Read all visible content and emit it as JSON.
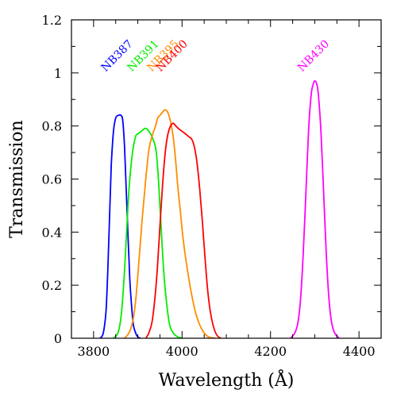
{
  "chart_data": {
    "type": "line",
    "title": "",
    "xlabel": "Wavelength (Å)",
    "ylabel": "Transmission",
    "xlim": [
      3750,
      4450
    ],
    "ylim": [
      0,
      1.2
    ],
    "x_ticks": [
      3800,
      4000,
      4200,
      4400
    ],
    "x_tick_labels": [
      "3800",
      "4000",
      "4200",
      "4400"
    ],
    "y_ticks": [
      0,
      0.2,
      0.4,
      0.6,
      0.8,
      1,
      1.2
    ],
    "y_tick_labels": [
      "0",
      "0.2",
      "0.4",
      "0.6",
      "0.8",
      "1",
      "1.2"
    ],
    "grid": false,
    "legend": "none",
    "series": [
      {
        "name": "NB387",
        "color": "#0000ff",
        "x": [
          3815,
          3822,
          3828,
          3832,
          3836,
          3840,
          3845,
          3850,
          3856,
          3862,
          3866,
          3870,
          3874,
          3878,
          3882,
          3886,
          3890,
          3895,
          3900,
          3906
        ],
        "y": [
          0.0,
          0.02,
          0.1,
          0.25,
          0.45,
          0.65,
          0.78,
          0.83,
          0.84,
          0.84,
          0.82,
          0.72,
          0.55,
          0.38,
          0.22,
          0.12,
          0.05,
          0.02,
          0.005,
          0.0
        ]
      },
      {
        "name": "NB391",
        "color": "#00ee00",
        "x": [
          3845,
          3855,
          3862,
          3868,
          3874,
          3880,
          3888,
          3895,
          3900,
          3908,
          3915,
          3920,
          3925,
          3932,
          3940,
          3945,
          3950,
          3955,
          3960,
          3966,
          3972,
          3980,
          3990,
          4000
        ],
        "y": [
          0.0,
          0.02,
          0.08,
          0.2,
          0.38,
          0.56,
          0.7,
          0.76,
          0.77,
          0.78,
          0.79,
          0.79,
          0.78,
          0.76,
          0.72,
          0.64,
          0.5,
          0.35,
          0.22,
          0.12,
          0.05,
          0.02,
          0.005,
          0.0
        ]
      },
      {
        "name": "NB395",
        "color": "#ff8c00",
        "x": [
          3870,
          3880,
          3888,
          3895,
          3902,
          3910,
          3918,
          3925,
          3932,
          3940,
          3945,
          3950,
          3955,
          3960,
          3964,
          3968,
          3972,
          3976,
          3980,
          3985,
          3990,
          3996,
          4002,
          4010,
          4020,
          4030,
          4040,
          4050,
          4060,
          4075
        ],
        "y": [
          0.0,
          0.02,
          0.06,
          0.14,
          0.28,
          0.45,
          0.6,
          0.71,
          0.76,
          0.8,
          0.83,
          0.84,
          0.85,
          0.86,
          0.86,
          0.85,
          0.83,
          0.8,
          0.76,
          0.68,
          0.58,
          0.48,
          0.38,
          0.28,
          0.18,
          0.1,
          0.05,
          0.02,
          0.005,
          0.0
        ]
      },
      {
        "name": "NB400",
        "color": "#ff0000",
        "x": [
          3918,
          3925,
          3932,
          3938,
          3944,
          3950,
          3956,
          3962,
          3968,
          3974,
          3980,
          3986,
          3992,
          4000,
          4008,
          4015,
          4022,
          4028,
          4034,
          4040,
          4046,
          4052,
          4058,
          4064,
          4070,
          4076,
          4082,
          4088
        ],
        "y": [
          0.0,
          0.02,
          0.06,
          0.14,
          0.26,
          0.42,
          0.58,
          0.7,
          0.77,
          0.8,
          0.81,
          0.8,
          0.79,
          0.78,
          0.77,
          0.76,
          0.75,
          0.72,
          0.66,
          0.56,
          0.44,
          0.3,
          0.18,
          0.1,
          0.05,
          0.02,
          0.005,
          0.0
        ]
      },
      {
        "name": "NB430",
        "color": "#ff00ff",
        "x": [
          4245,
          4255,
          4262,
          4268,
          4274,
          4280,
          4286,
          4292,
          4297,
          4300,
          4304,
          4308,
          4314,
          4320,
          4326,
          4332,
          4338,
          4345,
          4355
        ],
        "y": [
          0.0,
          0.02,
          0.06,
          0.15,
          0.32,
          0.55,
          0.78,
          0.92,
          0.96,
          0.97,
          0.96,
          0.92,
          0.78,
          0.55,
          0.32,
          0.15,
          0.06,
          0.02,
          0.0
        ]
      }
    ]
  }
}
